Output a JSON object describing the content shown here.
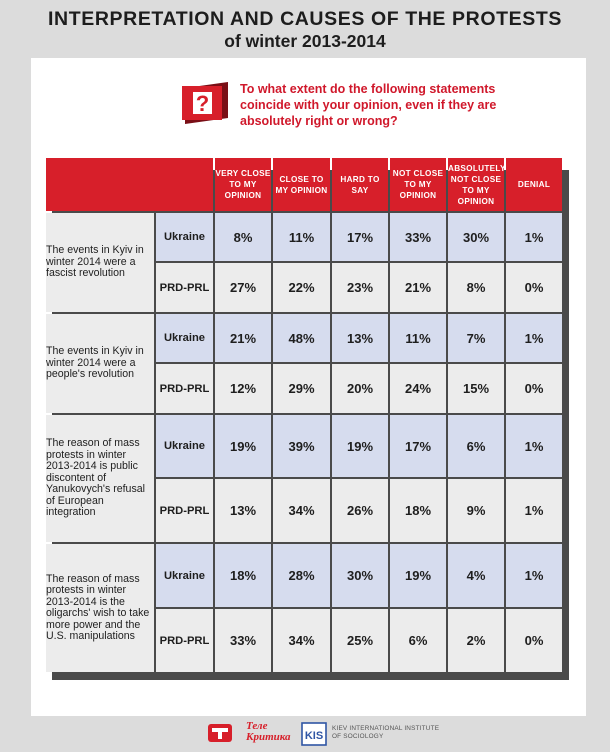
{
  "title": {
    "line1": "INTERPRETATION AND CAUSES OF THE PROTESTS",
    "line2": "of winter 2013-2014"
  },
  "question": "To what extent do the following statements coincide with your opinion, even if they are absolutely right or wrong?",
  "question_icon": "question-mark-icon",
  "colors": {
    "accent_red": "#d71f2a",
    "ukraine_row": "#d6dcee",
    "prd_row": "#ececec",
    "background": "#dcdcdc"
  },
  "columns": [
    "VERY CLOSE TO MY OPINION",
    "CLOSE TO MY OPINION",
    "HARD TO SAY",
    "NOT CLOSE TO MY OPINION",
    "ABSOLUTELY NOT CLOSE TO MY OPINION",
    "DENIAL"
  ],
  "groups": [
    "Ukraine",
    "PRD-PRL"
  ],
  "chart_data": {
    "type": "table",
    "title": "INTERPRETATION AND CAUSES OF THE PROTESTS of winter 2013-2014",
    "columns": [
      "VERY CLOSE TO MY OPINION",
      "CLOSE TO MY OPINION",
      "HARD TO SAY",
      "NOT CLOSE TO MY OPINION",
      "ABSOLUTELY NOT CLOSE TO MY OPINION",
      "DENIAL"
    ],
    "rows": [
      {
        "statement": "The events in Kyiv in winter 2014 were a fascist revolution",
        "values": {
          "Ukraine": [
            "8%",
            "11%",
            "17%",
            "33%",
            "30%",
            "1%"
          ],
          "PRD-PRL": [
            "27%",
            "22%",
            "23%",
            "21%",
            "8%",
            "0%"
          ]
        }
      },
      {
        "statement": "The events in Kyiv in winter 2014 were a people's revolution",
        "values": {
          "Ukraine": [
            "21%",
            "48%",
            "13%",
            "11%",
            "7%",
            "1%"
          ],
          "PRD-PRL": [
            "12%",
            "29%",
            "20%",
            "24%",
            "15%",
            "0%"
          ]
        }
      },
      {
        "statement": "The reason of mass protests in winter 2013-2014 is public discontent of Yanukovych's refusal of European integration",
        "values": {
          "Ukraine": [
            "19%",
            "39%",
            "19%",
            "17%",
            "6%",
            "1%"
          ],
          "PRD-PRL": [
            "13%",
            "34%",
            "26%",
            "18%",
            "9%",
            "1%"
          ]
        }
      },
      {
        "statement": "The reason of mass protests in winter 2013-2014 is the oligarchs' wish to take more power and the U.S. manipulations",
        "values": {
          "Ukraine": [
            "18%",
            "28%",
            "30%",
            "19%",
            "4%",
            "1%"
          ],
          "PRD-PRL": [
            "33%",
            "34%",
            "25%",
            "6%",
            "2%",
            "0%"
          ]
        }
      }
    ]
  },
  "footer": {
    "logo1_text": "Теле Критика",
    "logo2_text": "KIEV INTERNATIONAL INSTITUTE OF SOCIOLOGY",
    "logo2_mark": "KIIS"
  }
}
